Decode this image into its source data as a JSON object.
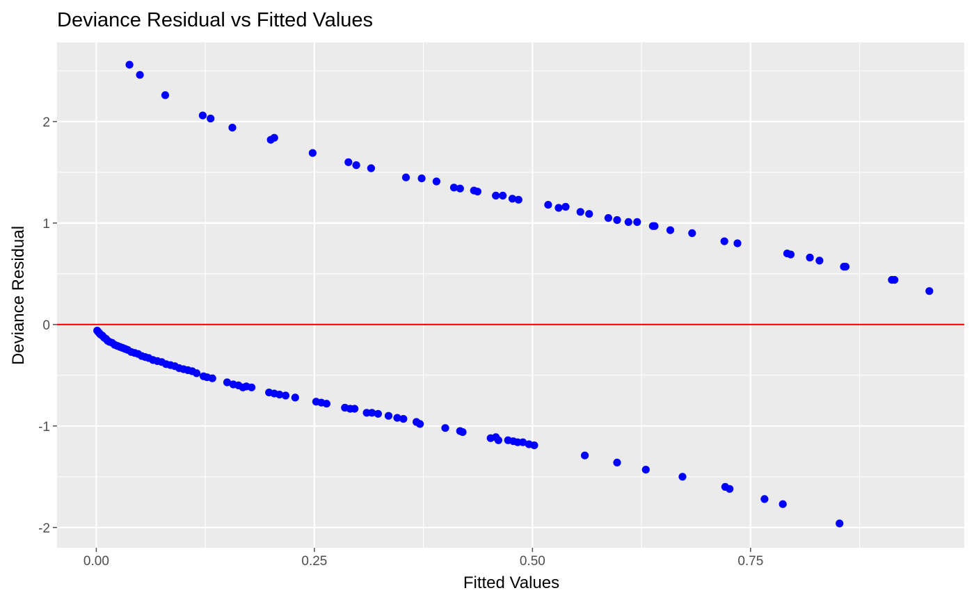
{
  "chart_data": {
    "type": "scatter",
    "title": "Deviance Residual vs Fitted Values",
    "xlabel": "Fitted Values",
    "ylabel": "Deviance Residual",
    "xlim": [
      -0.045,
      0.995
    ],
    "ylim": [
      -2.2,
      2.78
    ],
    "x_ticks": [
      0.0,
      0.25,
      0.5,
      0.75
    ],
    "x_tick_labels": [
      "0.00",
      "0.25",
      "0.50",
      "0.75"
    ],
    "y_ticks": [
      -2,
      -1,
      0,
      1,
      2
    ],
    "y_tick_labels": [
      "-2",
      "-1",
      "0",
      "1",
      "2"
    ],
    "grid": true,
    "reference_line": {
      "y": 0,
      "color": "#ff0000"
    },
    "colors": {
      "points": "#0000ff",
      "panel": "#ebebeb",
      "grid": "#ffffff",
      "ticks": "#4d4d4d"
    },
    "series": [
      {
        "name": "",
        "points": [
          [
            0.038,
            2.56
          ],
          [
            0.05,
            2.46
          ],
          [
            0.079,
            2.26
          ],
          [
            0.122,
            2.06
          ],
          [
            0.131,
            2.03
          ],
          [
            0.156,
            1.94
          ],
          [
            0.2,
            1.82
          ],
          [
            0.204,
            1.84
          ],
          [
            0.248,
            1.69
          ],
          [
            0.289,
            1.6
          ],
          [
            0.298,
            1.57
          ],
          [
            0.315,
            1.54
          ],
          [
            0.355,
            1.45
          ],
          [
            0.373,
            1.44
          ],
          [
            0.39,
            1.41
          ],
          [
            0.41,
            1.35
          ],
          [
            0.417,
            1.34
          ],
          [
            0.433,
            1.32
          ],
          [
            0.437,
            1.31
          ],
          [
            0.458,
            1.27
          ],
          [
            0.466,
            1.27
          ],
          [
            0.477,
            1.24
          ],
          [
            0.484,
            1.23
          ],
          [
            0.518,
            1.18
          ],
          [
            0.53,
            1.15
          ],
          [
            0.538,
            1.16
          ],
          [
            0.555,
            1.11
          ],
          [
            0.565,
            1.09
          ],
          [
            0.587,
            1.05
          ],
          [
            0.597,
            1.03
          ],
          [
            0.61,
            1.01
          ],
          [
            0.62,
            1.01
          ],
          [
            0.638,
            0.97
          ],
          [
            0.64,
            0.97
          ],
          [
            0.658,
            0.93
          ],
          [
            0.683,
            0.9
          ],
          [
            0.72,
            0.82
          ],
          [
            0.735,
            0.8
          ],
          [
            0.792,
            0.7
          ],
          [
            0.796,
            0.69
          ],
          [
            0.818,
            0.66
          ],
          [
            0.829,
            0.63
          ],
          [
            0.857,
            0.57
          ],
          [
            0.859,
            0.57
          ],
          [
            0.912,
            0.44
          ],
          [
            0.915,
            0.44
          ],
          [
            0.955,
            0.33
          ],
          [
            0.001,
            -0.06
          ],
          [
            0.002,
            -0.07
          ],
          [
            0.003,
            -0.08
          ],
          [
            0.004,
            -0.09
          ],
          [
            0.005,
            -0.1
          ],
          [
            0.007,
            -0.11
          ],
          [
            0.009,
            -0.13
          ],
          [
            0.011,
            -0.14
          ],
          [
            0.013,
            -0.16
          ],
          [
            0.015,
            -0.17
          ],
          [
            0.018,
            -0.18
          ],
          [
            0.021,
            -0.2
          ],
          [
            0.024,
            -0.21
          ],
          [
            0.027,
            -0.22
          ],
          [
            0.03,
            -0.23
          ],
          [
            0.033,
            -0.24
          ],
          [
            0.036,
            -0.25
          ],
          [
            0.04,
            -0.27
          ],
          [
            0.044,
            -0.28
          ],
          [
            0.048,
            -0.29
          ],
          [
            0.052,
            -0.31
          ],
          [
            0.056,
            -0.32
          ],
          [
            0.06,
            -0.33
          ],
          [
            0.065,
            -0.35
          ],
          [
            0.07,
            -0.36
          ],
          [
            0.075,
            -0.37
          ],
          [
            0.08,
            -0.39
          ],
          [
            0.085,
            -0.4
          ],
          [
            0.09,
            -0.41
          ],
          [
            0.095,
            -0.43
          ],
          [
            0.1,
            -0.44
          ],
          [
            0.105,
            -0.45
          ],
          [
            0.11,
            -0.46
          ],
          [
            0.115,
            -0.48
          ],
          [
            0.123,
            -0.51
          ],
          [
            0.127,
            -0.52
          ],
          [
            0.133,
            -0.53
          ],
          [
            0.15,
            -0.57
          ],
          [
            0.157,
            -0.59
          ],
          [
            0.163,
            -0.6
          ],
          [
            0.168,
            -0.62
          ],
          [
            0.172,
            -0.61
          ],
          [
            0.178,
            -0.62
          ],
          [
            0.198,
            -0.67
          ],
          [
            0.204,
            -0.68
          ],
          [
            0.21,
            -0.69
          ],
          [
            0.217,
            -0.7
          ],
          [
            0.228,
            -0.72
          ],
          [
            0.252,
            -0.76
          ],
          [
            0.258,
            -0.77
          ],
          [
            0.264,
            -0.78
          ],
          [
            0.285,
            -0.82
          ],
          [
            0.291,
            -0.83
          ],
          [
            0.296,
            -0.83
          ],
          [
            0.31,
            -0.87
          ],
          [
            0.316,
            -0.87
          ],
          [
            0.323,
            -0.88
          ],
          [
            0.335,
            -0.9
          ],
          [
            0.345,
            -0.92
          ],
          [
            0.352,
            -0.93
          ],
          [
            0.367,
            -0.96
          ],
          [
            0.371,
            -0.98
          ],
          [
            0.4,
            -1.02
          ],
          [
            0.417,
            -1.05
          ],
          [
            0.42,
            -1.06
          ],
          [
            0.452,
            -1.12
          ],
          [
            0.458,
            -1.11
          ],
          [
            0.461,
            -1.14
          ],
          [
            0.472,
            -1.14
          ],
          [
            0.478,
            -1.15
          ],
          [
            0.483,
            -1.16
          ],
          [
            0.489,
            -1.16
          ],
          [
            0.496,
            -1.18
          ],
          [
            0.502,
            -1.19
          ],
          [
            0.56,
            -1.29
          ],
          [
            0.597,
            -1.36
          ],
          [
            0.63,
            -1.43
          ],
          [
            0.672,
            -1.5
          ],
          [
            0.721,
            -1.6
          ],
          [
            0.726,
            -1.62
          ],
          [
            0.766,
            -1.72
          ],
          [
            0.787,
            -1.77
          ],
          [
            0.852,
            -1.96
          ]
        ]
      }
    ]
  }
}
